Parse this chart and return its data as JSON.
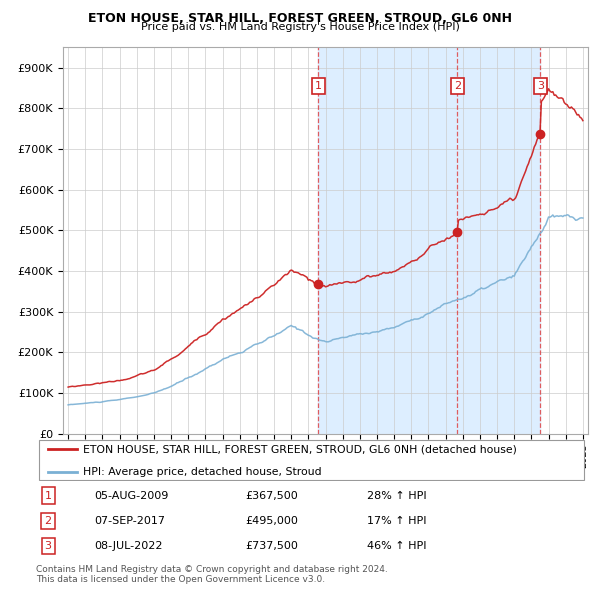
{
  "title": "ETON HOUSE, STAR HILL, FOREST GREEN, STROUD, GL6 0NH",
  "subtitle": "Price paid vs. HM Land Registry's House Price Index (HPI)",
  "legend_red": "ETON HOUSE, STAR HILL, FOREST GREEN, STROUD, GL6 0NH (detached house)",
  "legend_blue": "HPI: Average price, detached house, Stroud",
  "sales": [
    {
      "label": "1",
      "date_str": "05-AUG-2009",
      "year": 2009.59,
      "price": 367500,
      "pct": "28%",
      "dir": "↑"
    },
    {
      "label": "2",
      "date_str": "07-SEP-2017",
      "year": 2017.68,
      "price": 495000,
      "pct": "17%",
      "dir": "↑"
    },
    {
      "label": "3",
      "date_str": "08-JUL-2022",
      "year": 2022.52,
      "price": 737500,
      "pct": "46%",
      "dir": "↑"
    }
  ],
  "footer1": "Contains HM Land Registry data © Crown copyright and database right 2024.",
  "footer2": "This data is licensed under the Open Government Licence v3.0.",
  "red_color": "#cc2222",
  "blue_color": "#7ab0d4",
  "shade_color": "#ddeeff",
  "vline_color": "#dd4444",
  "ylim": [
    0,
    950000
  ],
  "yticks": [
    0,
    100000,
    200000,
    300000,
    400000,
    500000,
    600000,
    700000,
    800000,
    900000
  ],
  "ytick_labels": [
    "£0",
    "£100K",
    "£200K",
    "£300K",
    "£400K",
    "£500K",
    "£600K",
    "£700K",
    "£800K",
    "£900K"
  ],
  "xlim_start": 1994.7,
  "xlim_end": 2025.3
}
